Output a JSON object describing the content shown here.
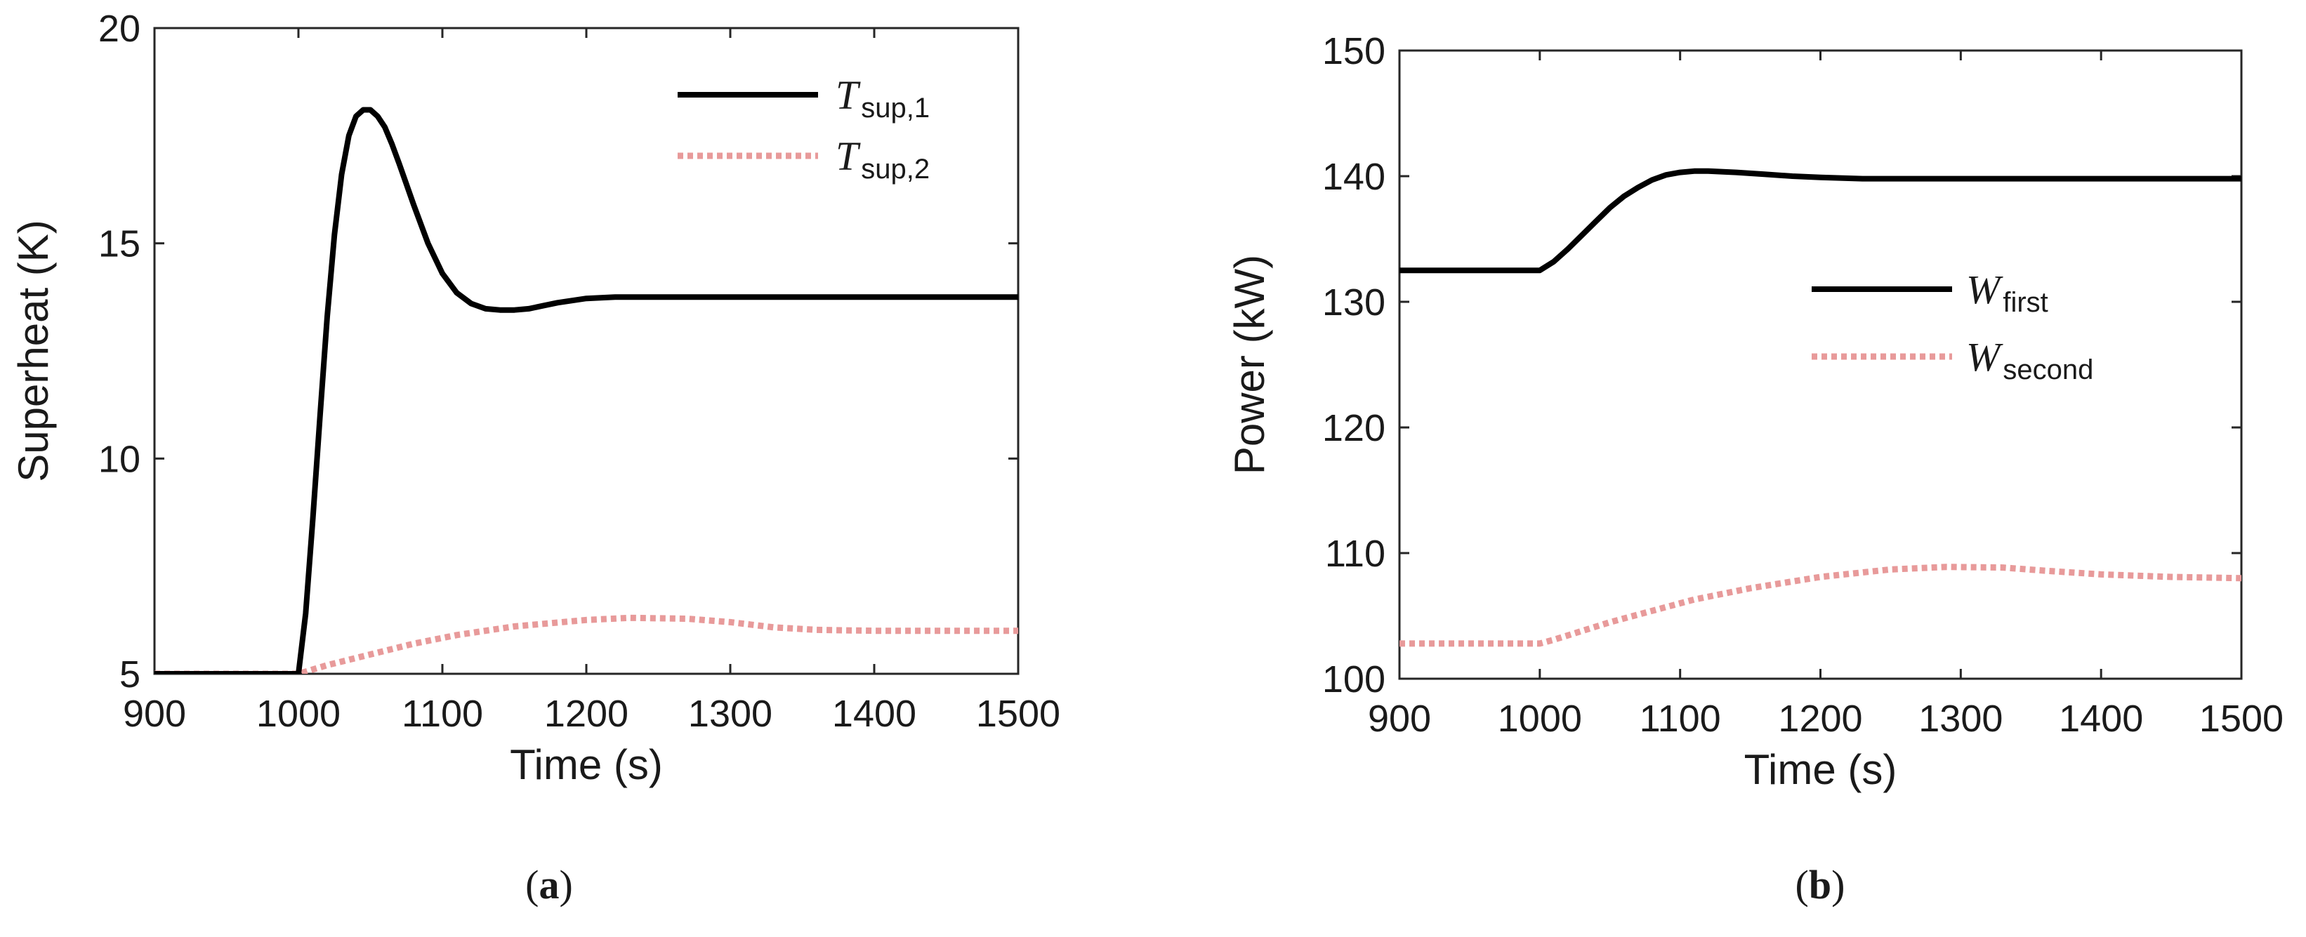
{
  "chart_data": [
    {
      "type": "line",
      "panel_label": "a",
      "xlabel": "Time (s)",
      "ylabel": "Superheat (K)",
      "xlim": [
        900,
        1500
      ],
      "ylim": [
        5,
        20
      ],
      "xticks": [
        900,
        1000,
        1100,
        1200,
        1300,
        1400,
        1500
      ],
      "yticks": [
        5,
        10,
        15,
        20
      ],
      "legend_position": "top-right",
      "colors": {
        "series1": "#000000",
        "series2": "#e89a9a"
      },
      "series": [
        {
          "name_main": "T",
          "name_sub": "sup,1",
          "style": "solid",
          "x": [
            900,
            1000,
            1005,
            1010,
            1015,
            1020,
            1025,
            1030,
            1035,
            1040,
            1045,
            1050,
            1055,
            1060,
            1065,
            1070,
            1080,
            1090,
            1100,
            1110,
            1120,
            1130,
            1140,
            1150,
            1160,
            1170,
            1180,
            1200,
            1220,
            1240,
            1300,
            1400,
            1500
          ],
          "y": [
            5,
            5,
            6.4,
            8.6,
            11.0,
            13.3,
            15.2,
            16.6,
            17.5,
            17.95,
            18.1,
            18.1,
            17.95,
            17.7,
            17.3,
            16.85,
            15.9,
            15.0,
            14.3,
            13.85,
            13.6,
            13.48,
            13.45,
            13.45,
            13.48,
            13.55,
            13.62,
            13.72,
            13.75,
            13.75,
            13.75,
            13.75,
            13.75
          ]
        },
        {
          "name_main": "T",
          "name_sub": "sup,2",
          "style": "dotted",
          "x": [
            900,
            1000,
            1020,
            1050,
            1080,
            1110,
            1150,
            1200,
            1230,
            1270,
            1300,
            1330,
            1360,
            1400,
            1450,
            1500
          ],
          "y": [
            5,
            5,
            5.2,
            5.45,
            5.7,
            5.9,
            6.1,
            6.25,
            6.3,
            6.28,
            6.2,
            6.08,
            6.02,
            6.0,
            6.0,
            6.0
          ]
        }
      ]
    },
    {
      "type": "line",
      "panel_label": "b",
      "xlabel": "Time (s)",
      "ylabel": "Power (kW)",
      "xlim": [
        900,
        1500
      ],
      "ylim": [
        100,
        150
      ],
      "xticks": [
        900,
        1000,
        1100,
        1200,
        1300,
        1400,
        1500
      ],
      "yticks": [
        100,
        110,
        120,
        130,
        140,
        150
      ],
      "legend_position": "center-right",
      "colors": {
        "series1": "#000000",
        "series2": "#e89a9a"
      },
      "series": [
        {
          "name_main": "W",
          "name_sub": "first",
          "style": "solid",
          "x": [
            900,
            1000,
            1010,
            1020,
            1030,
            1040,
            1050,
            1060,
            1070,
            1080,
            1090,
            1100,
            1110,
            1120,
            1140,
            1160,
            1180,
            1200,
            1230,
            1260,
            1300,
            1400,
            1500
          ],
          "y": [
            132.5,
            132.5,
            133.2,
            134.2,
            135.3,
            136.4,
            137.5,
            138.4,
            139.1,
            139.7,
            140.1,
            140.3,
            140.4,
            140.4,
            140.3,
            140.15,
            140.0,
            139.9,
            139.8,
            139.8,
            139.8,
            139.8,
            139.8
          ]
        },
        {
          "name_main": "W",
          "name_sub": "second",
          "style": "dotted",
          "x": [
            900,
            1000,
            1010,
            1030,
            1050,
            1080,
            1110,
            1150,
            1200,
            1250,
            1290,
            1330,
            1360,
            1400,
            1450,
            1500
          ],
          "y": [
            102.8,
            102.8,
            103.1,
            103.8,
            104.5,
            105.4,
            106.3,
            107.2,
            108.1,
            108.7,
            108.9,
            108.85,
            108.6,
            108.3,
            108.1,
            108.0
          ]
        }
      ]
    }
  ]
}
